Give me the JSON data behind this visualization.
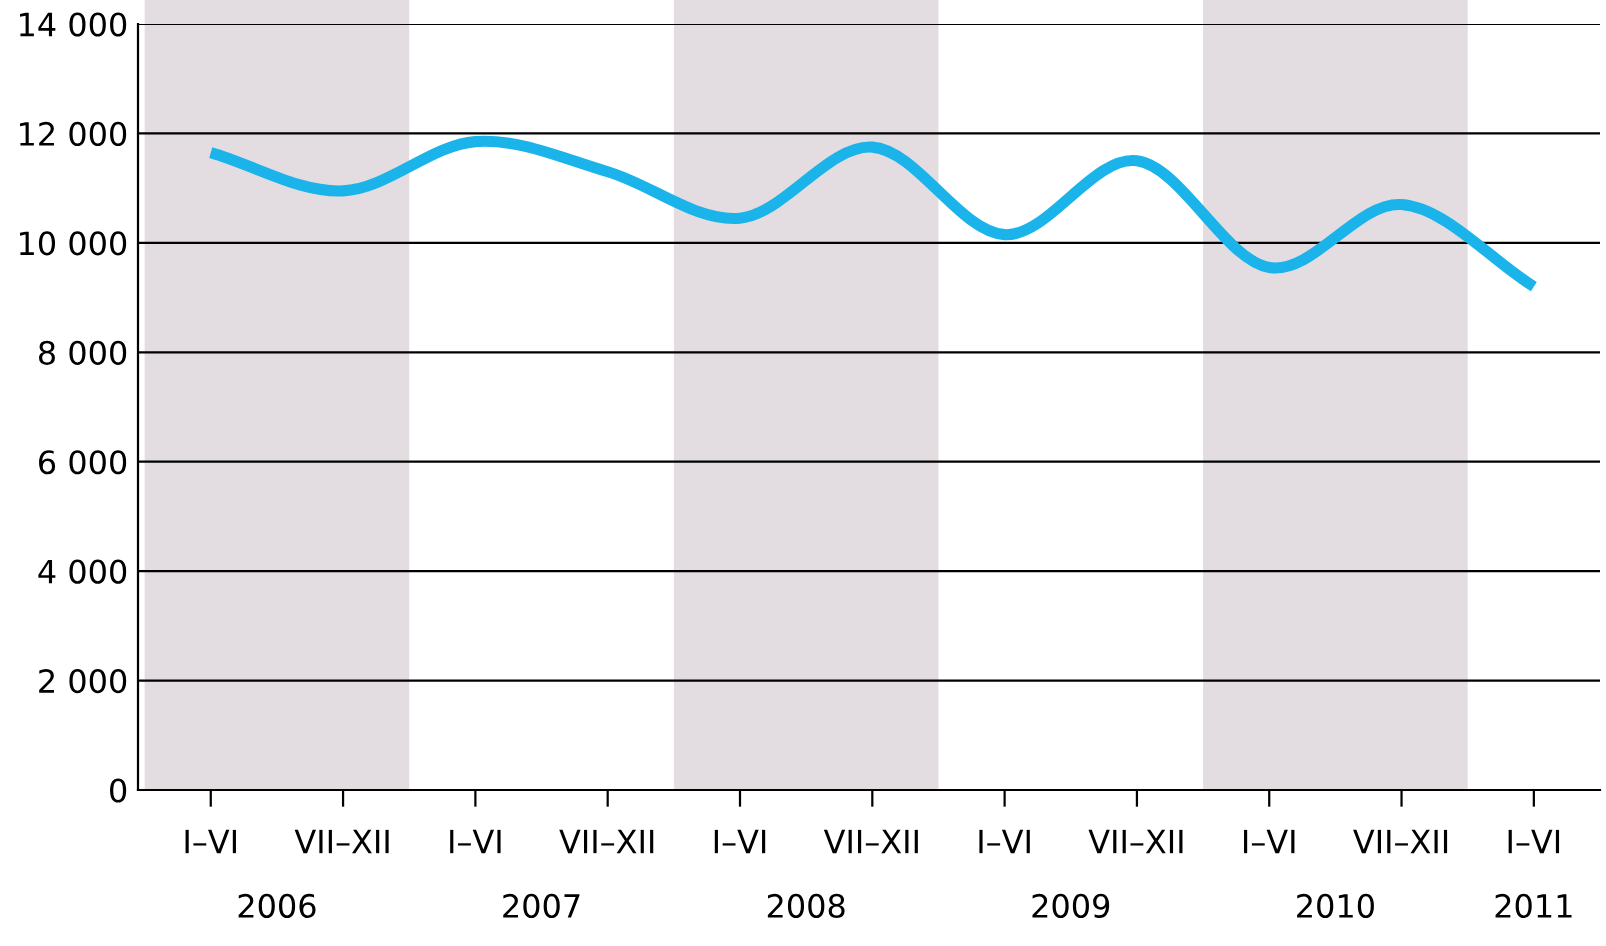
{
  "chart_data": {
    "type": "line",
    "categories": [
      "I–VI",
      "VII–XII",
      "I–VI",
      "VII–XII",
      "I–VI",
      "VII–XII",
      "I–VI",
      "VII–XII",
      "I–VI",
      "VII–XII",
      "I–VI"
    ],
    "series": [
      {
        "color": "#1ab3ea",
        "values": [
          11650,
          10950,
          11850,
          11300,
          10450,
          11750,
          10150,
          11500,
          9550,
          10700,
          9200
        ]
      }
    ],
    "ylim": [
      0,
      14000
    ],
    "yticks": [
      {
        "value": 0,
        "label": "0"
      },
      {
        "value": 2000,
        "label": "2 000"
      },
      {
        "value": 4000,
        "label": "4 000"
      },
      {
        "value": 6000,
        "label": "6 000"
      },
      {
        "value": 8000,
        "label": "8 000"
      },
      {
        "value": 10000,
        "label": "10 000"
      },
      {
        "value": 12000,
        "label": "12 000"
      },
      {
        "value": 14000,
        "label": "14 000"
      }
    ],
    "annotations": [
      "2006",
      "2007",
      "2008",
      "2009",
      "2010",
      "2011"
    ],
    "grid": "y",
    "marker": "none",
    "line_style": "solid"
  }
}
